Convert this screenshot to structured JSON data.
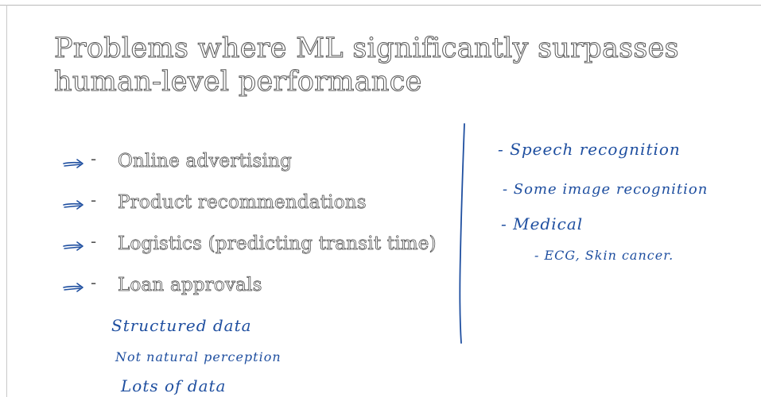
{
  "slide": {
    "title_line1": "Problems where ML significantly surpasses",
    "title_line2": "human-level performance",
    "bullets": [
      {
        "label": "Online advertising"
      },
      {
        "label": "Product recommendations"
      },
      {
        "label": "Logistics (predicting transit time)"
      },
      {
        "label": "Loan approvals"
      }
    ],
    "handwritten_left": [
      "Structured data",
      "Not natural perception",
      "Lots of data"
    ],
    "handwritten_right": [
      "- Speech recognition",
      "- Some image recognition",
      "- Medical",
      "- ECG, Skin cancer."
    ],
    "ink_color": "#1f4fa0",
    "text_outline_color": "#444444"
  }
}
